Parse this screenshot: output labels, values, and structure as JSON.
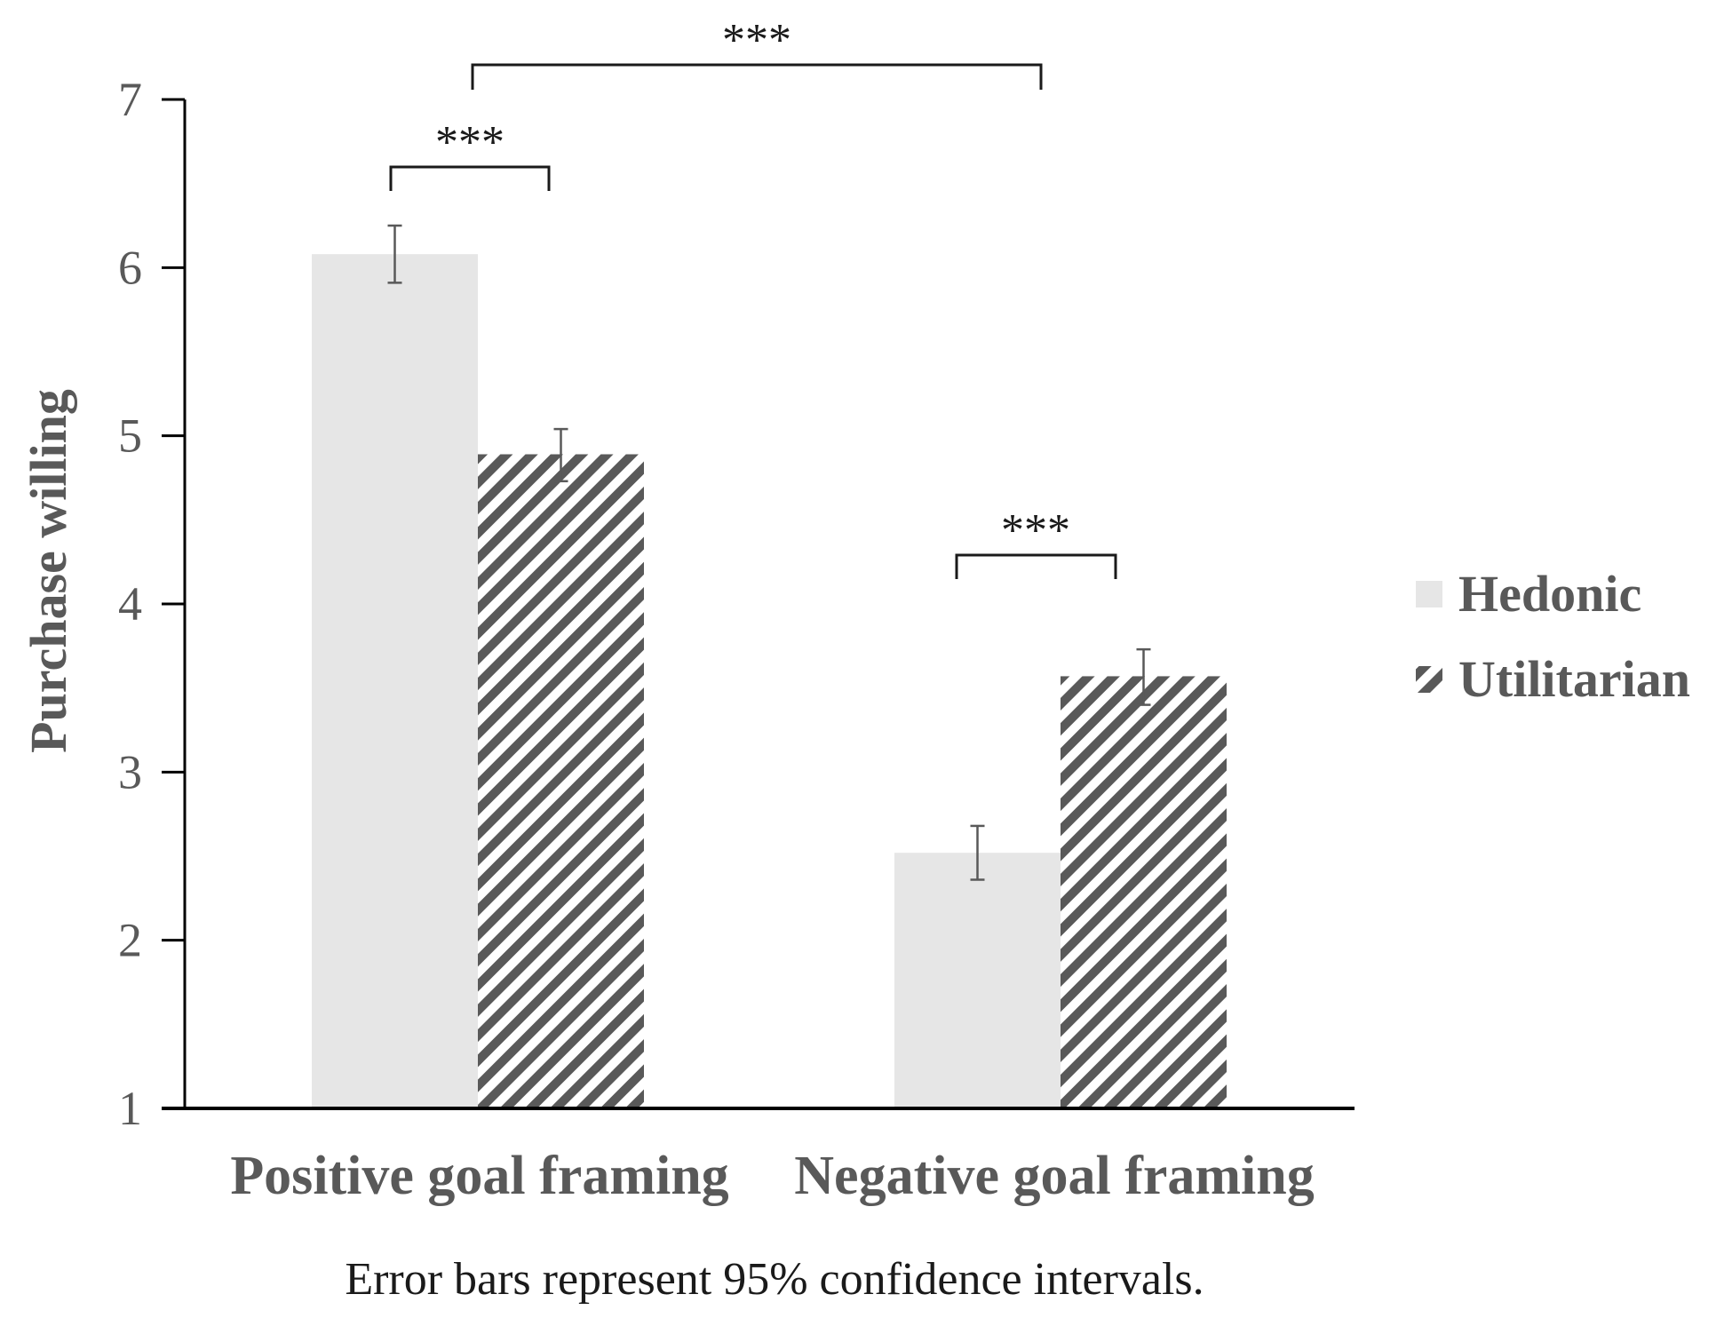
{
  "chart_data": {
    "type": "bar",
    "title": "",
    "xlabel": "",
    "ylabel": "Purchase willing",
    "ylim": [
      1,
      7
    ],
    "yticks": [
      "1",
      "2",
      "3",
      "4",
      "5",
      "6",
      "7"
    ],
    "grid": false,
    "legend_position": "right",
    "categories": [
      "Positive goal framing",
      "Negative goal framing"
    ],
    "series": [
      {
        "name": "Hedonic",
        "style": "solid",
        "color": "#e6e6e6",
        "values": [
          6.08,
          2.52
        ],
        "ci_low": [
          5.91,
          2.36
        ],
        "ci_high": [
          6.25,
          2.68
        ]
      },
      {
        "name": "Utilitarian",
        "style": "hatched",
        "color": "#595959",
        "values": [
          4.89,
          3.57
        ],
        "ci_low": [
          4.73,
          3.4
        ],
        "ci_high": [
          5.04,
          3.73
        ]
      }
    ],
    "significance": [
      {
        "label": "***",
        "between": "Positive goal framing: Hedonic vs Utilitarian"
      },
      {
        "label": "***",
        "between": "Negative goal framing: Hedonic vs Utilitarian"
      },
      {
        "label": "***",
        "between": "Positive goal framing vs Negative goal framing"
      }
    ],
    "note": "Error bars represent 95% confidence intervals."
  },
  "colors": {
    "hedonic_fill": "#e6e6e6",
    "hatch_stroke": "#595959",
    "text": "#595959",
    "axis": "#000000",
    "bracket": "#1a1a1a"
  }
}
